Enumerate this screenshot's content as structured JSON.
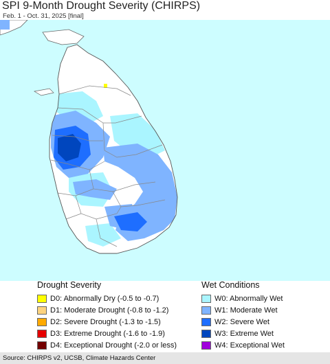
{
  "title": "SPI 9-Month Drought Severity (CHIRPS)",
  "subtitle": "Feb. 1 - Oct. 31, 2025 [final]",
  "map": {
    "ocean_color": "#cdfdff",
    "land_color": "#ffffff",
    "boundary_color": "#888888"
  },
  "legend": {
    "drought": {
      "title": "Drought Severity",
      "items": [
        {
          "label": "D0: Abnormally Dry (-0.5 to -0.7)",
          "color": "#ffff00"
        },
        {
          "label": "D1: Moderate Drought (-0.8 to -1.2)",
          "color": "#fcd37f"
        },
        {
          "label": "D2: Severe Drought (-1.3 to -1.5)",
          "color": "#ffaa00"
        },
        {
          "label": "D3: Extreme Drought (-1.6 to -1.9)",
          "color": "#e60000"
        },
        {
          "label": "D4: Exceptional Drought (-2.0 or less)",
          "color": "#730000"
        }
      ]
    },
    "wet": {
      "title": "Wet Conditions",
      "items": [
        {
          "label": "W0: Abnormally Wet",
          "color": "#aaf5ff"
        },
        {
          "label": "W1: Moderate Wet",
          "color": "#7fb4ff"
        },
        {
          "label": "W2: Severe Wet",
          "color": "#1e6eff"
        },
        {
          "label": "W3: Extreme Wet",
          "color": "#0046be"
        },
        {
          "label": "W4: Exceptional Wet",
          "color": "#a000dc"
        }
      ]
    }
  },
  "source": "Source: CHIRPS v2, UCSB, Climate Hazards Center"
}
